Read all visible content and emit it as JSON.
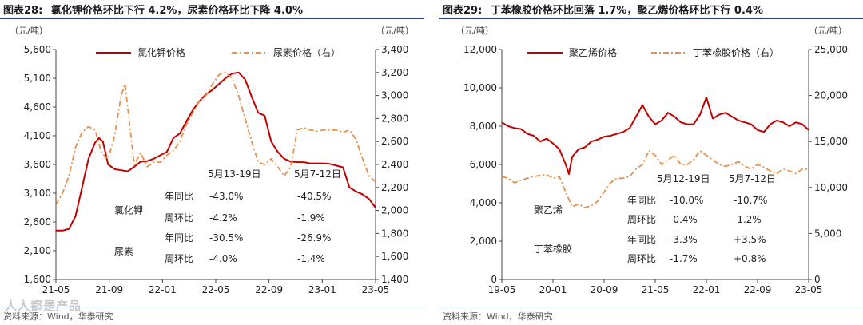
{
  "chart_data": [
    {
      "type": "line",
      "figure_label": "图表28:",
      "title": "氯化钾价格环比下行 4.2%，尿素价格环比下降 4.0%",
      "left_unit": "（元/吨）",
      "right_unit": "（元/吨）",
      "x_ticks": [
        "21-05",
        "21-09",
        "22-01",
        "22-05",
        "22-09",
        "23-01",
        "23-05"
      ],
      "y_left": {
        "min": 1600,
        "max": 5600,
        "ticks": [
          1600,
          2100,
          2600,
          3100,
          3600,
          4100,
          4600,
          5100,
          5600
        ]
      },
      "y_right": {
        "min": 1400,
        "max": 3400,
        "ticks": [
          1400,
          1600,
          1800,
          2000,
          2200,
          2400,
          2600,
          2800,
          3000,
          3200,
          3400
        ]
      },
      "series": [
        {
          "name": "氯化钾价格",
          "axis": "left",
          "color": "#c00000",
          "style": "solid",
          "x": [
            0,
            0.5,
            1,
            1.5,
            2,
            2.5,
            3,
            3.3,
            3.6,
            4,
            4.5,
            5,
            5.5,
            6,
            6.5,
            7,
            7.5,
            8,
            8.5,
            9,
            9.5,
            10,
            10.5,
            11,
            11.5,
            12,
            12.5,
            13,
            13.5,
            14,
            14.5,
            15,
            15.5,
            16,
            16.5,
            17,
            17.5,
            18,
            18.5,
            19,
            19.5,
            20,
            20.5,
            21,
            21.5,
            22,
            22.5,
            23,
            23.5,
            24,
            24.5
          ],
          "y": [
            2450,
            2450,
            2480,
            2700,
            3200,
            3700,
            3980,
            4060,
            4000,
            3600,
            3520,
            3500,
            3480,
            3560,
            3650,
            3660,
            3700,
            3760,
            3820,
            4060,
            4140,
            4350,
            4550,
            4700,
            4820,
            4900,
            5000,
            5100,
            5180,
            5200,
            5080,
            4780,
            4500,
            4450,
            4000,
            3820,
            3700,
            3650,
            3640,
            3640,
            3620,
            3620,
            3620,
            3610,
            3580,
            3550,
            3200,
            3130,
            3080,
            3000,
            2850
          ]
        },
        {
          "name": "尿素价格（右）",
          "axis": "right",
          "color": "#e8904a",
          "style": "dashdot",
          "x": [
            0,
            0.5,
            1,
            1.5,
            2,
            2.5,
            3,
            3.5,
            4,
            4.5,
            5,
            5.3,
            5.6,
            6,
            6.5,
            7,
            7.5,
            8,
            8.5,
            9,
            9.5,
            10,
            10.5,
            11,
            11.5,
            12,
            12.5,
            13,
            13.5,
            14,
            14.5,
            15,
            15.5,
            16,
            16.5,
            17,
            17.5,
            18,
            18.5,
            19,
            19.5,
            20,
            20.5,
            21,
            21.5,
            22,
            22.5,
            23,
            23.5,
            24,
            24.5
          ],
          "y": [
            2050,
            2150,
            2300,
            2550,
            2680,
            2730,
            2700,
            2500,
            2450,
            2650,
            3000,
            3100,
            2800,
            2400,
            2500,
            2380,
            2420,
            2420,
            2480,
            2520,
            2600,
            2750,
            2850,
            2950,
            3000,
            3100,
            3180,
            3200,
            3150,
            3000,
            2800,
            2600,
            2420,
            2400,
            2450,
            2380,
            2300,
            2380,
            2700,
            2720,
            2700,
            2690,
            2700,
            2700,
            2700,
            2680,
            2700,
            2620,
            2450,
            2300,
            2250
          ]
        }
      ],
      "annotations": {
        "headers": [
          "5月13-19日",
          "5月7-12日"
        ],
        "rows": [
          {
            "group": "氯化钾",
            "metric": "年同比",
            "a": "-43.0%",
            "b": "-40.5%"
          },
          {
            "group": "",
            "metric": "周环比",
            "a": "-4.2%",
            "b": "-1.9%"
          },
          {
            "group": "",
            "metric": "年同比",
            "a": "-30.5%",
            "b": "-26.9%"
          },
          {
            "group": "尿素",
            "metric": "周环比",
            "a": "-4.0%",
            "b": "-1.4%"
          }
        ]
      },
      "source": "资料来源：Wind，华泰研究"
    },
    {
      "type": "line",
      "figure_label": "图表29:",
      "title": "丁苯橡胶价格环比回落 1.7%，聚乙烯价格环比下行 0.4%",
      "left_unit": "（元/吨）",
      "right_unit": "（元/吨）",
      "x_ticks": [
        "19-05",
        "20-01",
        "20-09",
        "21-05",
        "22-01",
        "22-09",
        "23-05"
      ],
      "y_left": {
        "min": 0,
        "max": 12000,
        "ticks": [
          0,
          2000,
          4000,
          6000,
          8000,
          10000,
          12000
        ]
      },
      "y_right": {
        "min": 0,
        "max": 25000,
        "ticks": [
          0,
          5000,
          10000,
          15000,
          20000,
          25000
        ]
      },
      "series": [
        {
          "name": "聚乙烯价格",
          "axis": "left",
          "color": "#c00000",
          "style": "solid",
          "x": [
            0,
            1,
            2,
            3,
            4,
            5,
            6,
            7,
            8,
            9,
            10,
            10.5,
            11,
            12,
            13,
            14,
            15,
            16,
            17,
            18,
            19,
            20,
            21,
            22,
            23,
            24,
            25,
            26,
            27,
            28,
            29,
            30,
            31,
            32,
            33,
            34,
            35,
            36,
            37,
            38,
            39,
            40,
            41,
            42,
            43,
            44,
            45,
            46,
            47,
            48
          ],
          "y": [
            8200,
            8000,
            7900,
            7850,
            7600,
            7500,
            7200,
            7350,
            7100,
            6800,
            6000,
            5500,
            6400,
            6800,
            6900,
            7200,
            7300,
            7450,
            7500,
            7600,
            7700,
            7900,
            8500,
            9100,
            8500,
            8100,
            8300,
            8700,
            8500,
            8200,
            8100,
            8100,
            8600,
            9500,
            8400,
            8600,
            8700,
            8500,
            8300,
            8200,
            8100,
            7800,
            7700,
            8100,
            8300,
            8200,
            8000,
            8200,
            8100,
            7800
          ]
        },
        {
          "name": "丁苯橡胶价格（右）",
          "axis": "right",
          "color": "#e8904a",
          "style": "dashdot",
          "x": [
            0,
            1,
            2,
            3,
            4,
            5,
            6,
            7,
            8,
            9,
            10,
            11,
            12,
            13,
            14,
            15,
            16,
            17,
            18,
            19,
            20,
            21,
            22,
            23,
            24,
            25,
            26,
            27,
            28,
            29,
            30,
            31,
            32,
            33,
            34,
            35,
            36,
            37,
            38,
            39,
            40,
            41,
            42,
            43,
            44,
            45,
            46,
            47,
            48
          ],
          "y": [
            11200,
            11000,
            10500,
            10800,
            11000,
            11200,
            11300,
            11400,
            11000,
            11200,
            9500,
            7900,
            8200,
            7800,
            8000,
            8500,
            9500,
            10500,
            11000,
            11000,
            11200,
            12000,
            12500,
            14000,
            13500,
            12500,
            13000,
            13500,
            12500,
            12500,
            13000,
            14000,
            13500,
            13000,
            12500,
            12300,
            12500,
            12800,
            12300,
            12000,
            12500,
            12200,
            11800,
            11500,
            12000,
            11800,
            11500,
            12000,
            12000
          ]
        }
      ],
      "annotations": {
        "headers": [
          "5月12-19日",
          "5月7-12日"
        ],
        "rows": [
          {
            "group": "",
            "metric": "年同比",
            "a": "-10.0%",
            "b": "-10.7%"
          },
          {
            "group": "聚乙烯",
            "metric": "周环比",
            "a": "-0.4%",
            "b": "-1.2%"
          },
          {
            "group": "",
            "metric": "年同比",
            "a": "-3.3%",
            "b": "+3.5%"
          },
          {
            "group": "丁苯橡胶",
            "metric": "周环比",
            "a": "-1.7%",
            "b": "+0.8%"
          }
        ]
      },
      "source": "资料来源：Wind，华泰研究"
    }
  ],
  "watermark": "人人都是产品"
}
